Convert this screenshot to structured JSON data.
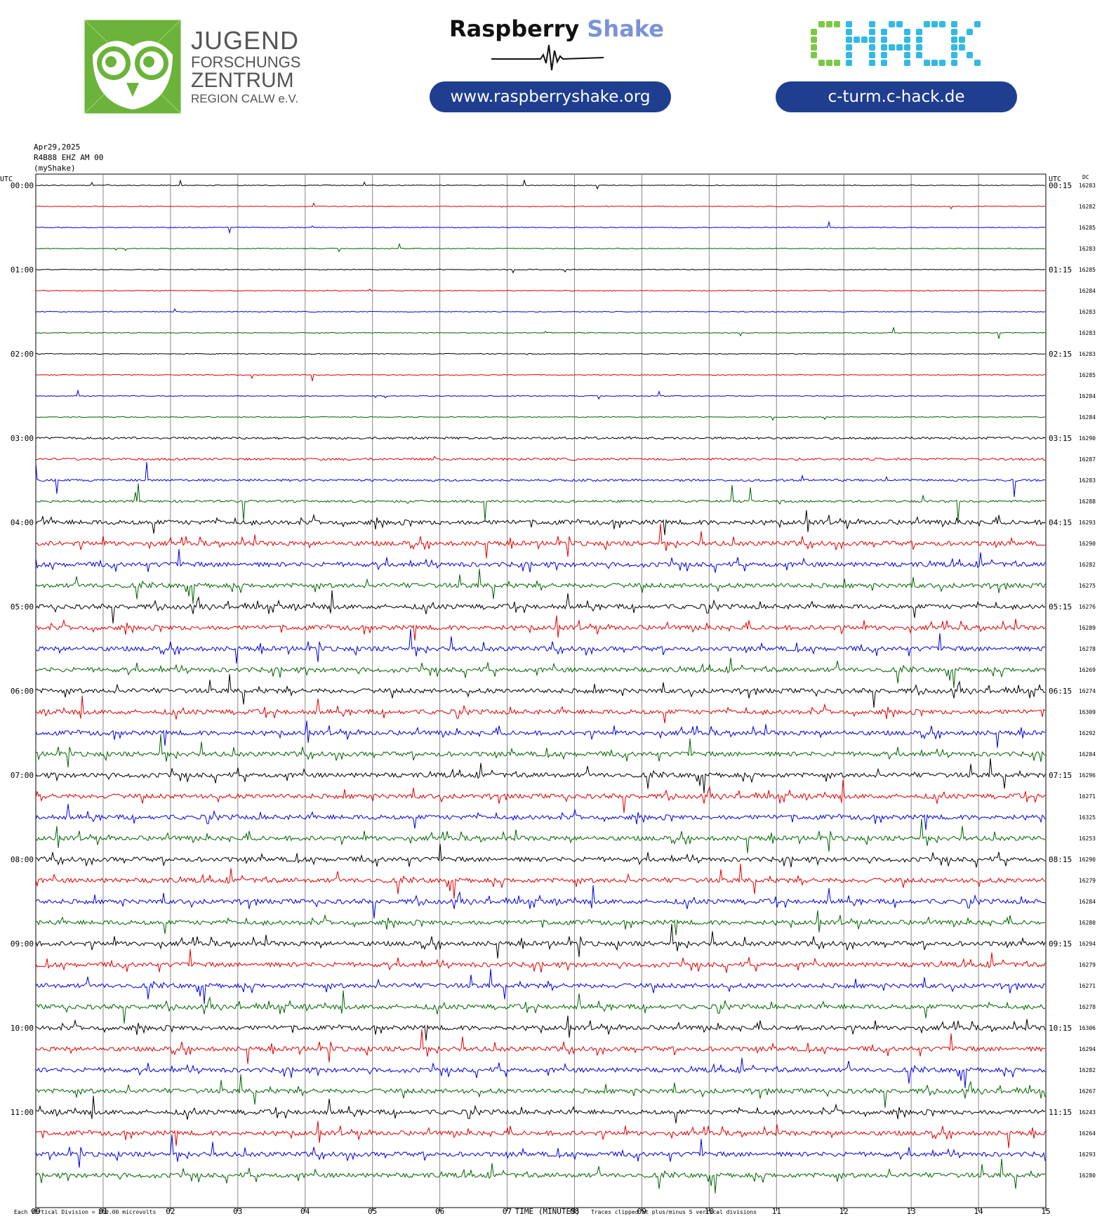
{
  "header": {
    "org_line1": "JUGEND",
    "org_line2": "FORSCHUNGS",
    "org_line3": "ZENTRUM",
    "org_line4": "REGION CALW e.V.",
    "rs_brand_a": "Raspberry",
    "rs_brand_b": "Shake",
    "rs_url": "www.raspberryshake.org",
    "chack_logo": "CHACK",
    "chack_url": "c-turm.c-hack.de",
    "owl_logo_color": "#6bb33a",
    "pill_color": "#1f3e8f"
  },
  "plot_header": {
    "date": "Apr29,2025",
    "station": "R4B88 EHZ AM 00",
    "source": "(myShake)"
  },
  "chart_data": {
    "type": "helicorder",
    "left_axis_label": "UTC",
    "right_axis_label": "UTC",
    "dc_label": "DC",
    "left_times": [
      "00:00",
      "01:00",
      "02:00",
      "03:00",
      "04:00",
      "05:00",
      "06:00",
      "07:00",
      "08:00",
      "09:00",
      "10:00",
      "11:00"
    ],
    "right_times": [
      "00:15",
      "01:15",
      "02:15",
      "03:15",
      "04:15",
      "05:15",
      "06:15",
      "07:15",
      "08:15",
      "09:15",
      "10:15",
      "11:15"
    ],
    "dc_values": [
      16283,
      16282,
      16285,
      16283,
      16285,
      16284,
      16283,
      16283,
      16283,
      16285,
      16284,
      16284,
      16290,
      16287,
      16283,
      16288,
      16293,
      16290,
      16282,
      16275,
      16276,
      16289,
      16278,
      16269,
      16274,
      16309,
      16292,
      16284,
      16296,
      16271,
      16325,
      16253,
      16290,
      16279,
      16284,
      16280,
      16294,
      16279,
      16271,
      16278,
      16306,
      16294,
      16282,
      16267,
      16243,
      16264,
      16293,
      16280
    ],
    "trace_colors": [
      "#000000",
      "#e00000",
      "#0000e0",
      "#006400"
    ],
    "x_ticks": [
      "00",
      "01",
      "02",
      "03",
      "04",
      "05",
      "06",
      "07",
      "08",
      "09",
      "10",
      "11",
      "12",
      "13",
      "14",
      "15"
    ],
    "xlabel": "TIME (MINUTES)",
    "footer_left": "Each Vertical Division =  200.00 microvolts",
    "footer_right": "Traces clipped at plus/minus 5 vertical divisions",
    "rows_per_hour": 4,
    "minutes_per_row": 15
  }
}
